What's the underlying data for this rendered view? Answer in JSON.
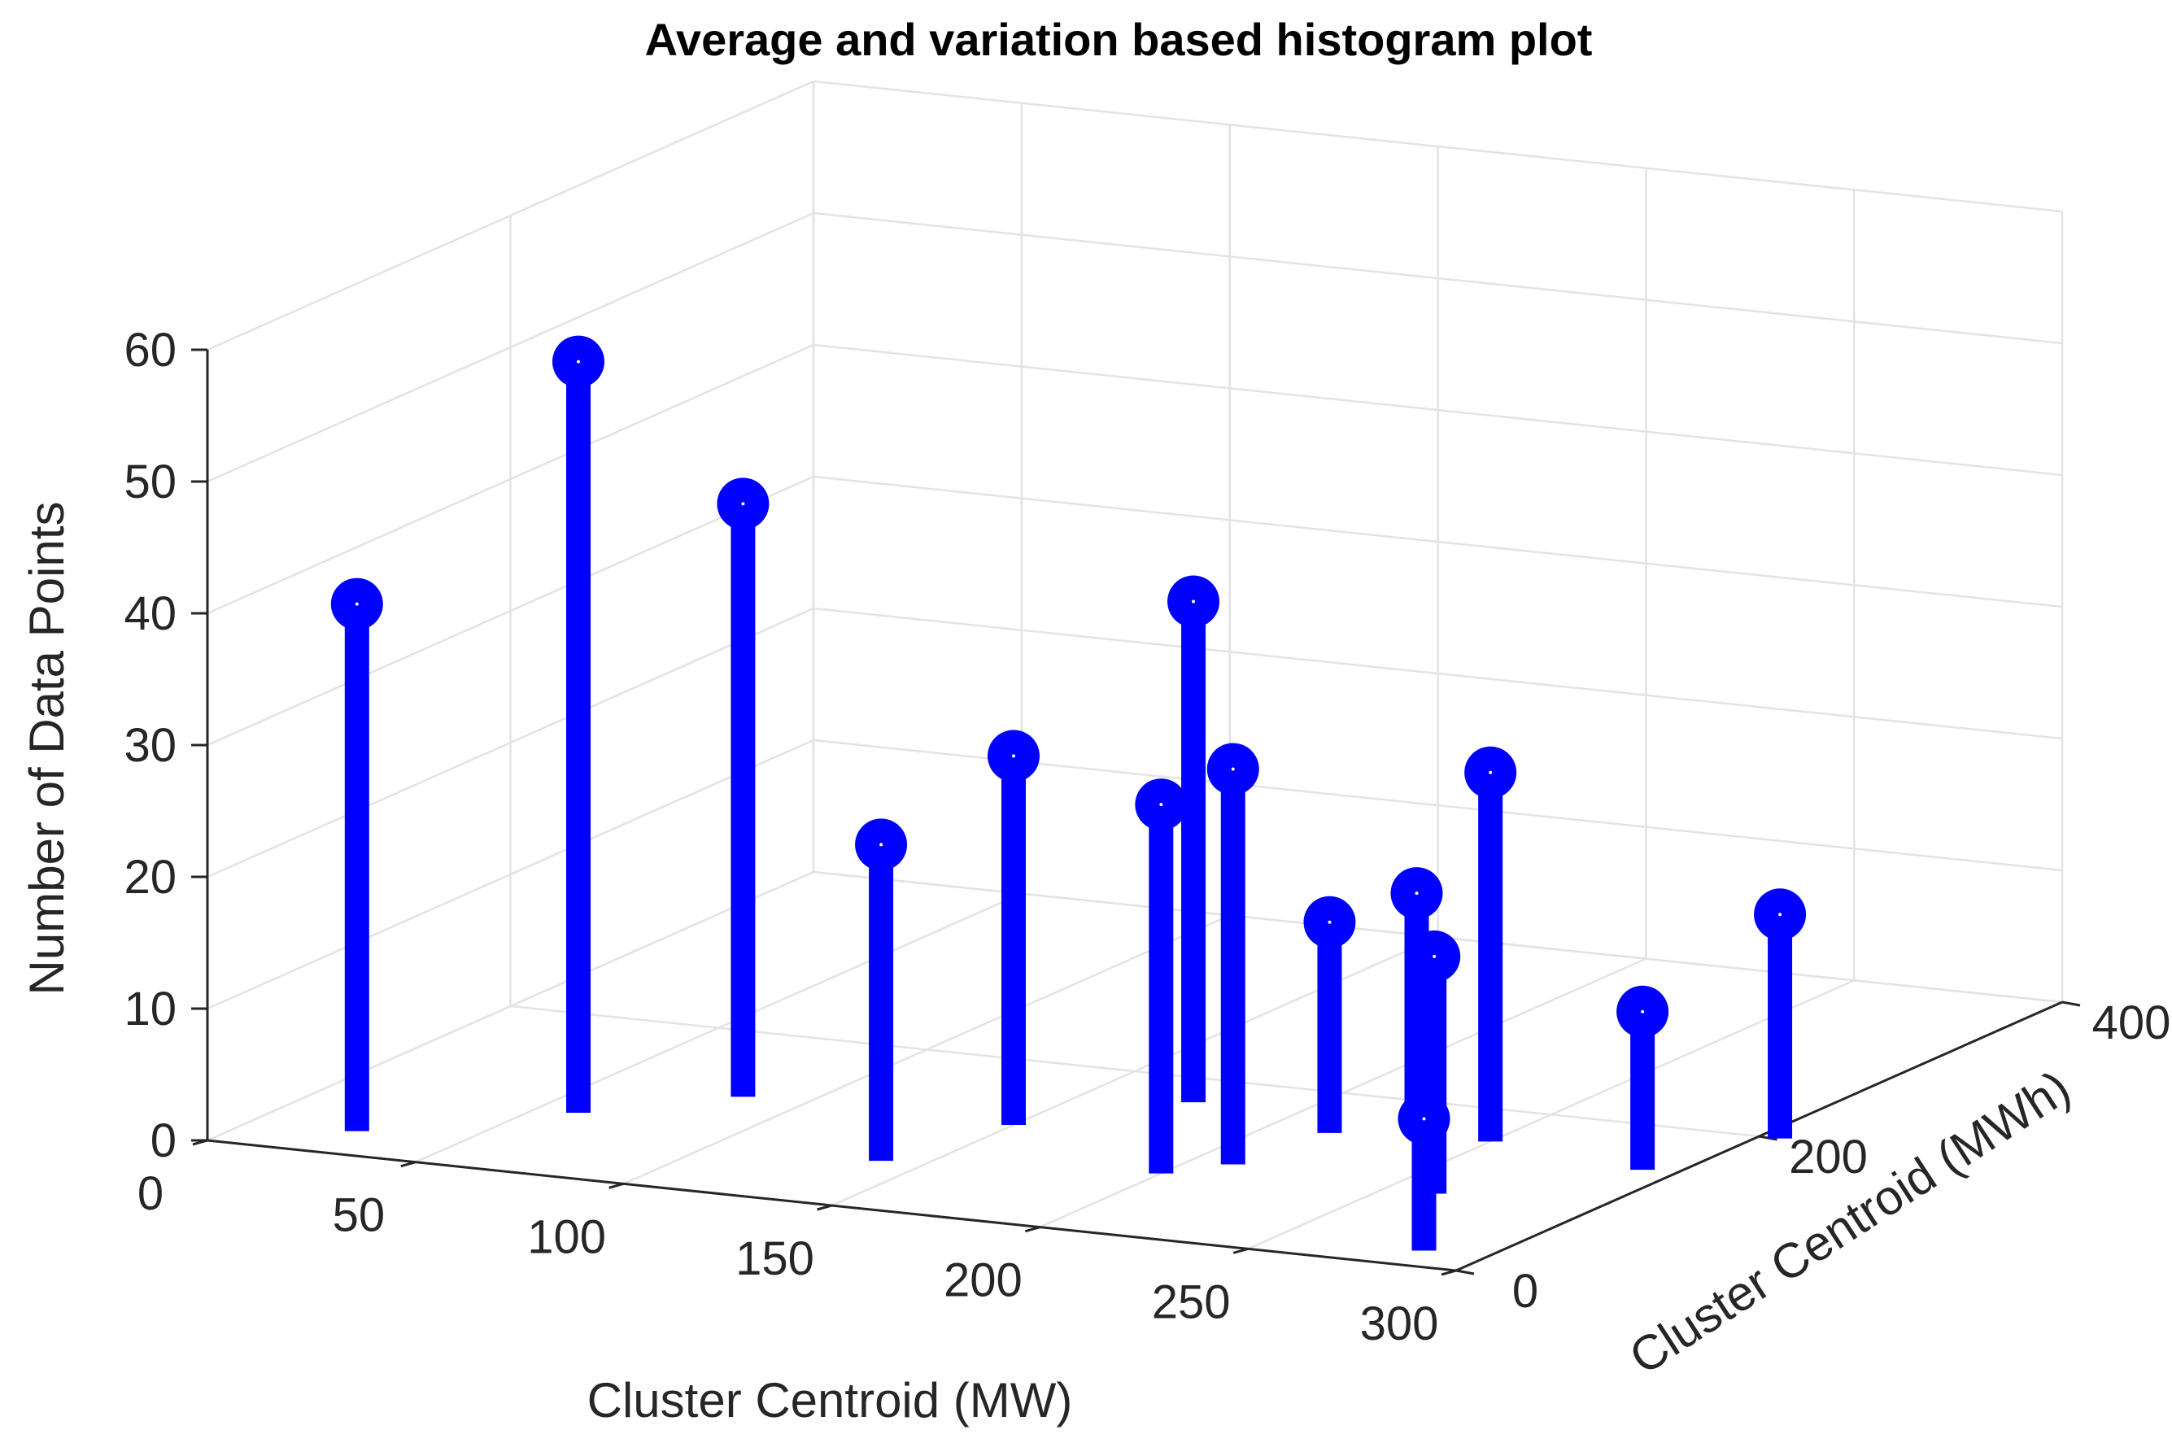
{
  "chart_data": {
    "type": "stem3",
    "title": "Average and variation based histogram plot",
    "xlabel": "Cluster Centroid (MW)",
    "ylabel": "Cluster Centroid (MWh)",
    "zlabel": "Number of Data Points",
    "xlim": [
      0,
      300
    ],
    "ylim": [
      0,
      400
    ],
    "zlim": [
      0,
      60
    ],
    "xticks": [
      "0",
      "50",
      "100",
      "150",
      "200",
      "250",
      "300"
    ],
    "yticks": [
      "0",
      "200",
      "400"
    ],
    "zticks": [
      "0",
      "10",
      "20",
      "30",
      "40",
      "50",
      "60"
    ],
    "grid": true,
    "color": "#0000ff",
    "points": [
      {
        "x": 25,
        "y": 30,
        "z": 40
      },
      {
        "x": 60,
        "y": 80,
        "z": 57
      },
      {
        "x": 85,
        "y": 120,
        "z": 45
      },
      {
        "x": 140,
        "y": 60,
        "z": 24
      },
      {
        "x": 150,
        "y": 120,
        "z": 28
      },
      {
        "x": 175,
        "y": 170,
        "z": 38
      },
      {
        "x": 200,
        "y": 80,
        "z": 28
      },
      {
        "x": 210,
        "y": 100,
        "z": 30
      },
      {
        "x": 215,
        "y": 150,
        "z": 16
      },
      {
        "x": 225,
        "y": 180,
        "z": 17
      },
      {
        "x": 250,
        "y": 160,
        "z": 28
      },
      {
        "x": 262,
        "y": 90,
        "z": 18
      },
      {
        "x": 285,
        "y": 20,
        "z": 10
      },
      {
        "x": 292,
        "y": 145,
        "z": 12
      },
      {
        "x": 305,
        "y": 200,
        "z": 17
      }
    ]
  }
}
